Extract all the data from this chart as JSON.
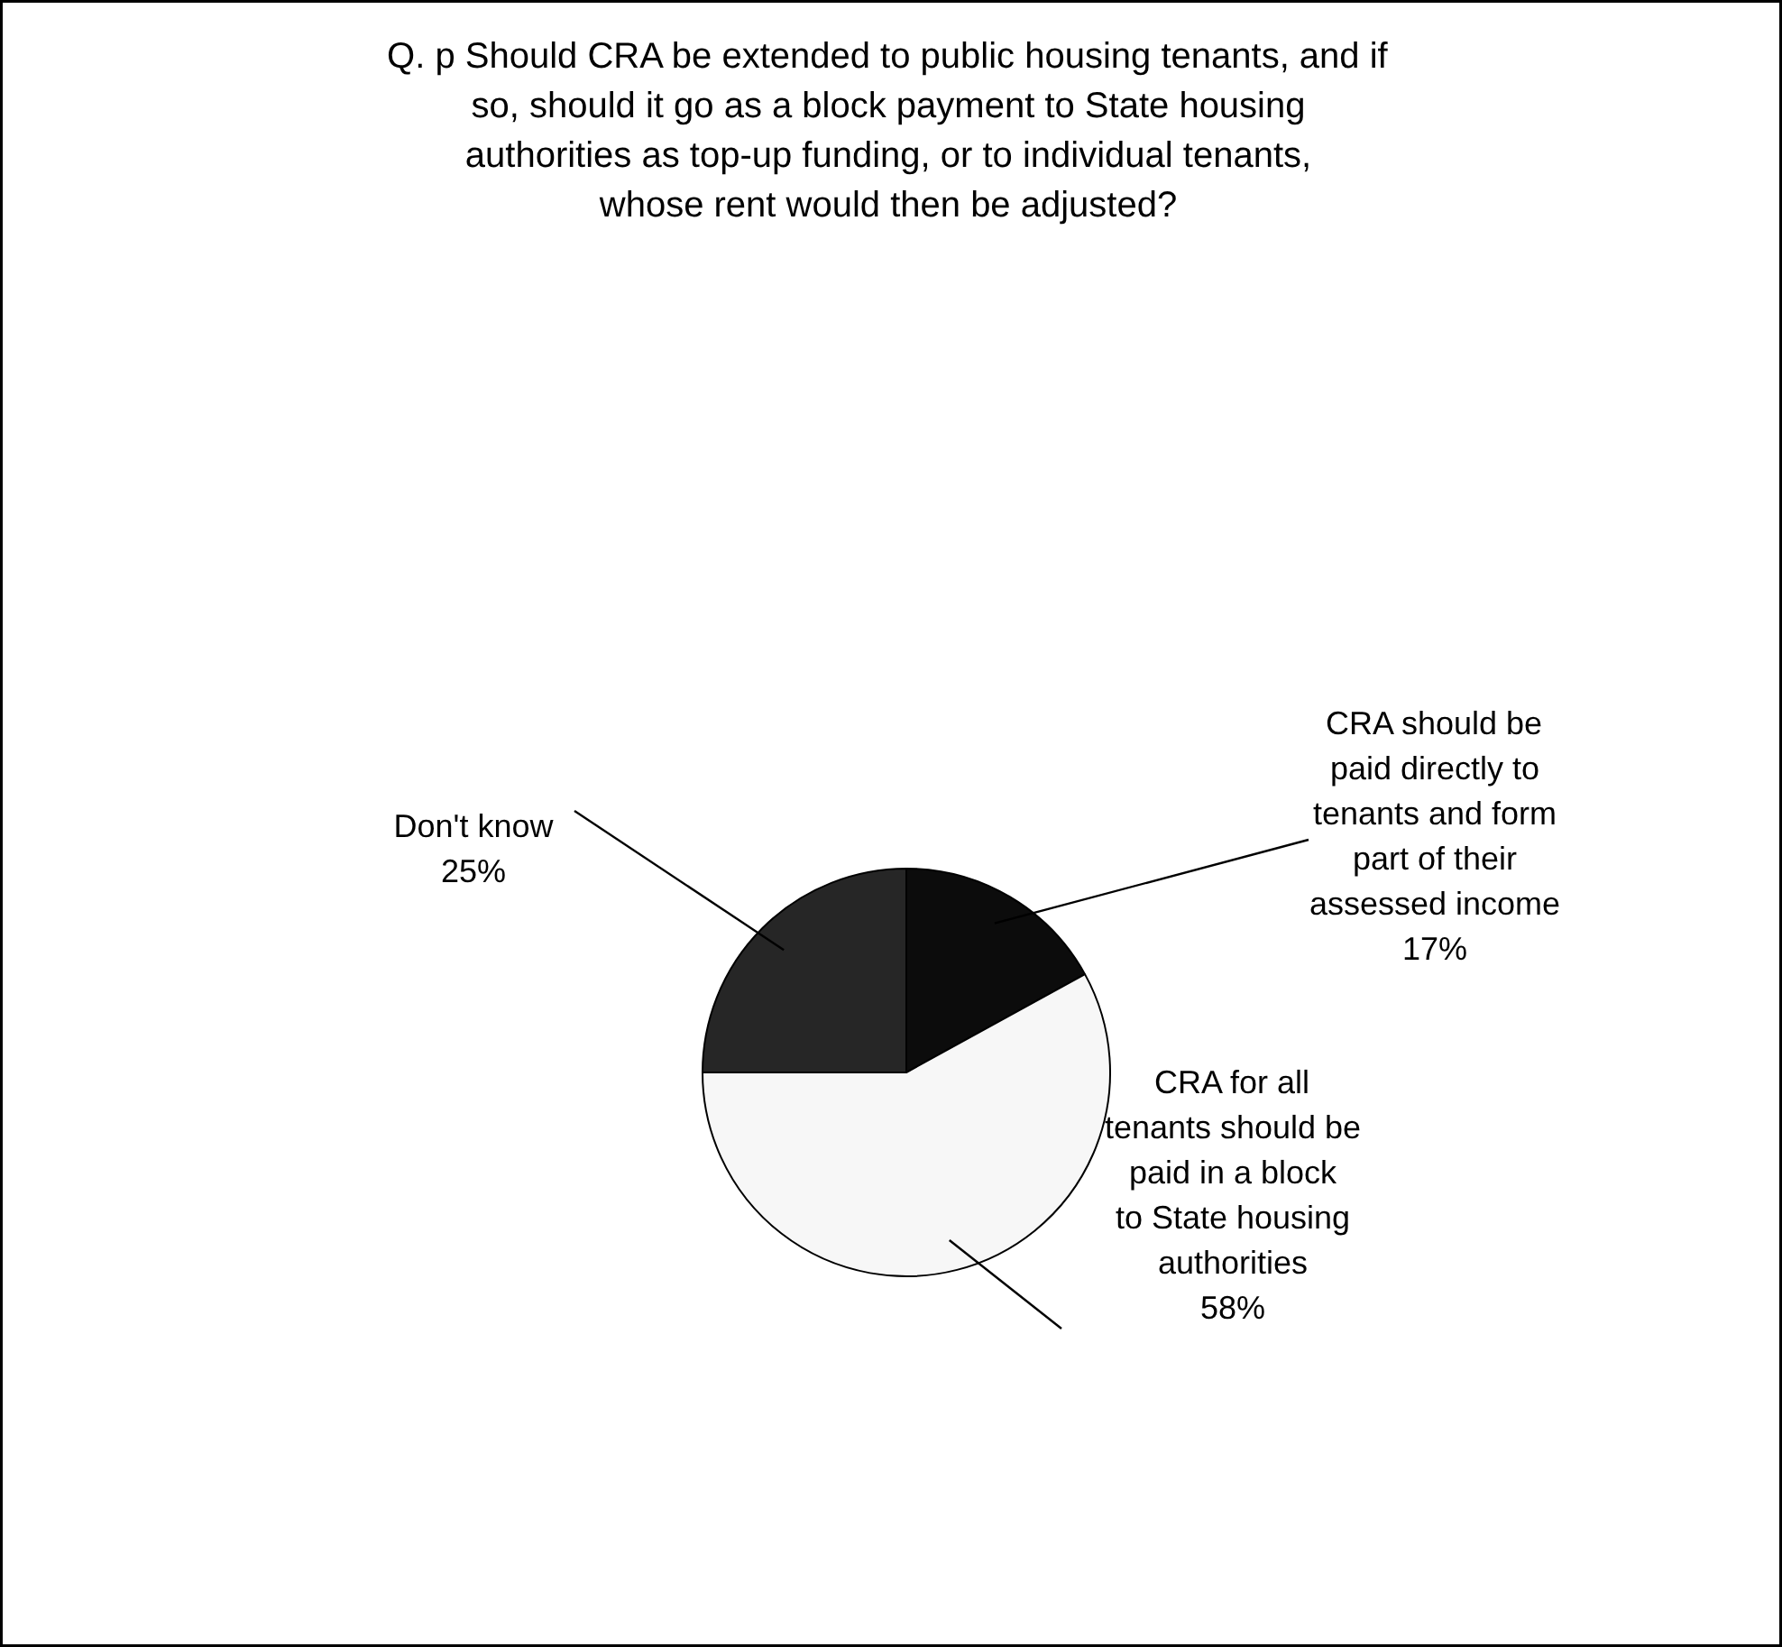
{
  "chart_data": {
    "type": "pie",
    "title": "Q. p Should CRA be extended to public housing tenants, and if so, should it go as a block payment to State housing authorities as top-up funding, or to individual tenants, whose rent would then be adjusted?",
    "categories": [
      "CRA should be paid directly to tenants and form part of their assessed income",
      "CRA for all tenants should be paid in a block to State housing authorities",
      "Don't know"
    ],
    "values": [
      17,
      58,
      25
    ],
    "value_labels": [
      "17%",
      "58%",
      "25%"
    ],
    "colors": [
      "#0c0c0c",
      "#f7f7f7",
      "#262626"
    ]
  }
}
